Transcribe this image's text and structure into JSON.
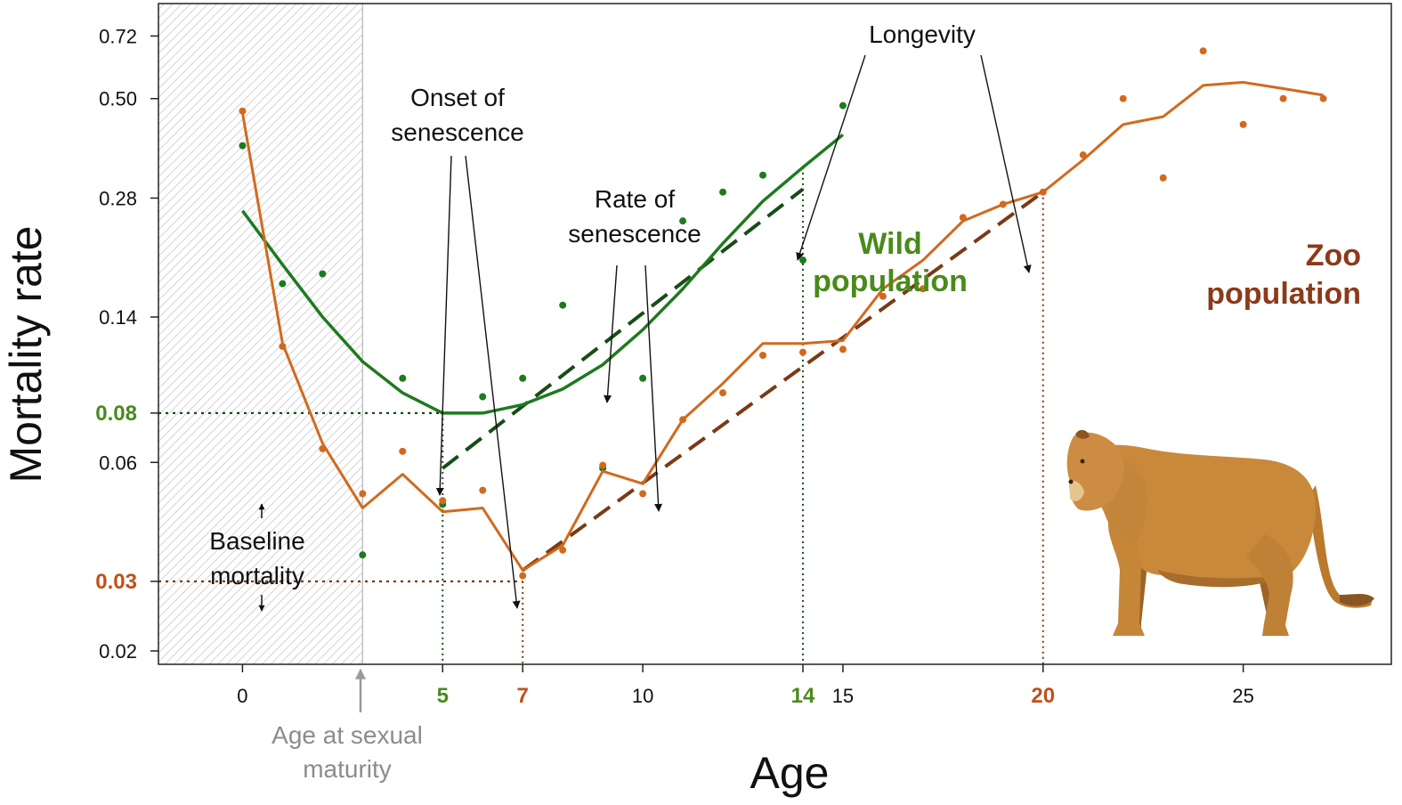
{
  "chart_data": {
    "type": "line",
    "title": "",
    "xlabel": "Age",
    "ylabel": "Mortality rate",
    "xlim": [
      -2.1,
      28.7
    ],
    "ylim": [
      0.0185,
      0.87
    ],
    "yscale": "log",
    "x_ticks": [
      {
        "value": 0,
        "label": "0",
        "color": "#111111"
      },
      {
        "value": 5,
        "label": "5",
        "color": "#4a8a1c"
      },
      {
        "value": 7,
        "label": "7",
        "color": "#c0501a"
      },
      {
        "value": 10,
        "label": "10",
        "color": "#111111"
      },
      {
        "value": 14,
        "label": "14",
        "color": "#4a8a1c"
      },
      {
        "value": 15,
        "label": "15",
        "color": "#111111"
      },
      {
        "value": 20,
        "label": "20",
        "color": "#c0501a"
      },
      {
        "value": 25,
        "label": "25",
        "color": "#111111"
      }
    ],
    "y_ticks": [
      {
        "value": 0.02,
        "label": "0.02",
        "color": "#111111",
        "bold": false
      },
      {
        "value": 0.03,
        "label": "0.03",
        "color": "#c0501a",
        "bold": true
      },
      {
        "value": 0.06,
        "label": "0.06",
        "color": "#111111",
        "bold": false
      },
      {
        "value": 0.08,
        "label": "0.08",
        "color": "#4a8a1c",
        "bold": true
      },
      {
        "value": 0.14,
        "label": "0.14",
        "color": "#111111",
        "bold": false
      },
      {
        "value": 0.28,
        "label": "0.28",
        "color": "#111111",
        "bold": false
      },
      {
        "value": 0.5,
        "label": "0.50",
        "color": "#111111",
        "bold": false
      },
      {
        "value": 0.72,
        "label": "0.72",
        "color": "#111111",
        "bold": false
      }
    ],
    "shaded_region": {
      "x0": -2.1,
      "x1": 3,
      "label_lines": [
        "Age at sexual",
        "maturity"
      ]
    },
    "series": [
      {
        "name": "Wild population",
        "label_lines": [
          "Wild",
          "population"
        ],
        "color": "#1e7a1e",
        "label_color": "#4a8a1c",
        "points_x": [
          0,
          1,
          2,
          3,
          4,
          5,
          6,
          7,
          8,
          9,
          10,
          11,
          12,
          13,
          14,
          15
        ],
        "points_y": [
          0.38,
          0.17,
          0.18,
          0.035,
          0.098,
          0.047,
          0.088,
          0.098,
          0.15,
          0.058,
          0.098,
          0.245,
          0.29,
          0.32,
          0.195,
          0.48
        ],
        "fit_x": [
          0,
          1,
          2,
          3,
          4,
          5,
          6,
          7,
          8,
          9,
          10,
          11,
          12,
          13,
          14,
          15
        ],
        "fit_y": [
          0.26,
          0.19,
          0.14,
          0.108,
          0.09,
          0.08,
          0.08,
          0.084,
          0.092,
          0.106,
          0.13,
          0.165,
          0.215,
          0.275,
          0.335,
          0.405
        ],
        "linear_x": [
          5,
          14
        ],
        "linear_y": [
          0.058,
          0.295
        ],
        "baseline": 0.08,
        "onset": 5,
        "longevity": 14
      },
      {
        "name": "Zoo population",
        "label_lines": [
          "Zoo",
          "population"
        ],
        "color": "#d2691e",
        "label_color": "#8b3a1a",
        "points_x": [
          0,
          1,
          2,
          3,
          4,
          5,
          6,
          7,
          8,
          9,
          10,
          11,
          12,
          13,
          14,
          15,
          16,
          17,
          18,
          19,
          20,
          21,
          22,
          23,
          24,
          25,
          26,
          27
        ],
        "points_y": [
          0.465,
          0.118,
          0.065,
          0.05,
          0.064,
          0.048,
          0.051,
          0.031,
          0.036,
          0.059,
          0.05,
          0.077,
          0.09,
          0.112,
          0.114,
          0.116,
          0.158,
          0.165,
          0.25,
          0.27,
          0.29,
          0.36,
          0.5,
          0.315,
          0.66,
          0.43,
          0.5,
          0.5
        ],
        "fit_x": [
          0,
          1,
          2,
          3,
          4,
          5,
          6,
          7,
          8,
          9,
          10,
          11,
          12,
          13,
          14,
          15,
          16,
          17,
          18,
          19,
          20,
          21,
          22,
          23,
          24,
          25,
          26,
          27
        ],
        "fit_y": [
          0.46,
          0.12,
          0.067,
          0.046,
          0.056,
          0.045,
          0.046,
          0.032,
          0.037,
          0.057,
          0.053,
          0.077,
          0.095,
          0.12,
          0.12,
          0.122,
          0.165,
          0.195,
          0.245,
          0.27,
          0.29,
          0.35,
          0.43,
          0.45,
          0.54,
          0.55,
          0.53,
          0.51
        ],
        "linear_x": [
          7,
          20
        ],
        "linear_y": [
          0.032,
          0.29
        ],
        "baseline": 0.03,
        "onset": 7,
        "longevity": 20
      }
    ],
    "annotations": {
      "onset": [
        "Onset of",
        "senescence"
      ],
      "rate": [
        "Rate of",
        "senescence"
      ],
      "longevity": "Longevity",
      "baseline": [
        "Baseline",
        "mortality"
      ]
    },
    "illustration": "lioness"
  }
}
